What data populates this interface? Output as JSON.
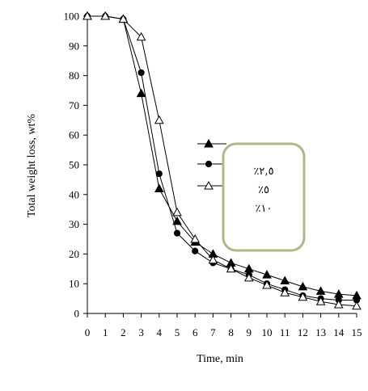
{
  "chart_data": {
    "type": "line",
    "xlabel": "Time, min",
    "ylabel": "Total weight loss, wt%",
    "xlim": [
      0,
      15
    ],
    "ylim": [
      0,
      100
    ],
    "x_ticks": [
      "0",
      "1",
      "2",
      "3",
      "4",
      "5",
      "6",
      "7",
      "8",
      "9",
      "10",
      "11",
      "12",
      "13",
      "14",
      "15"
    ],
    "y_ticks": [
      "0",
      "10",
      "20",
      "30",
      "40",
      "50",
      "60",
      "70",
      "80",
      "90",
      "100"
    ],
    "grid": false,
    "legend_position": "right-center",
    "series": [
      {
        "name": "٪۲,٥",
        "marker": "filled-triangle",
        "x": [
          0,
          1,
          2,
          3,
          4,
          5,
          6,
          7,
          8,
          9,
          10,
          11,
          12,
          13,
          14,
          15
        ],
        "y": [
          100,
          100,
          99,
          74,
          42,
          31,
          24,
          20,
          17,
          15,
          13,
          11,
          9,
          7.5,
          6.5,
          6
        ]
      },
      {
        "name": "٪٥",
        "marker": "filled-circle",
        "x": [
          0,
          1,
          2,
          3,
          4,
          5,
          6,
          7,
          8,
          9,
          10,
          11,
          12,
          13,
          14,
          15
        ],
        "y": [
          100,
          100,
          99,
          81,
          47,
          27,
          21,
          17,
          15,
          13,
          10,
          8,
          6,
          5,
          4.5,
          4.5
        ]
      },
      {
        "name": "٪۱٠",
        "marker": "open-triangle",
        "x": [
          0,
          1,
          2,
          3,
          4,
          5,
          6,
          7,
          8,
          9,
          10,
          11,
          12,
          13,
          14,
          15
        ],
        "y": [
          100,
          100,
          99,
          93,
          65,
          34,
          25,
          18,
          15,
          12,
          9.5,
          7,
          5.5,
          4,
          3,
          2.5
        ]
      }
    ],
    "colors": {
      "line": "#000000",
      "legend_box_border": "#b5b38a"
    }
  }
}
